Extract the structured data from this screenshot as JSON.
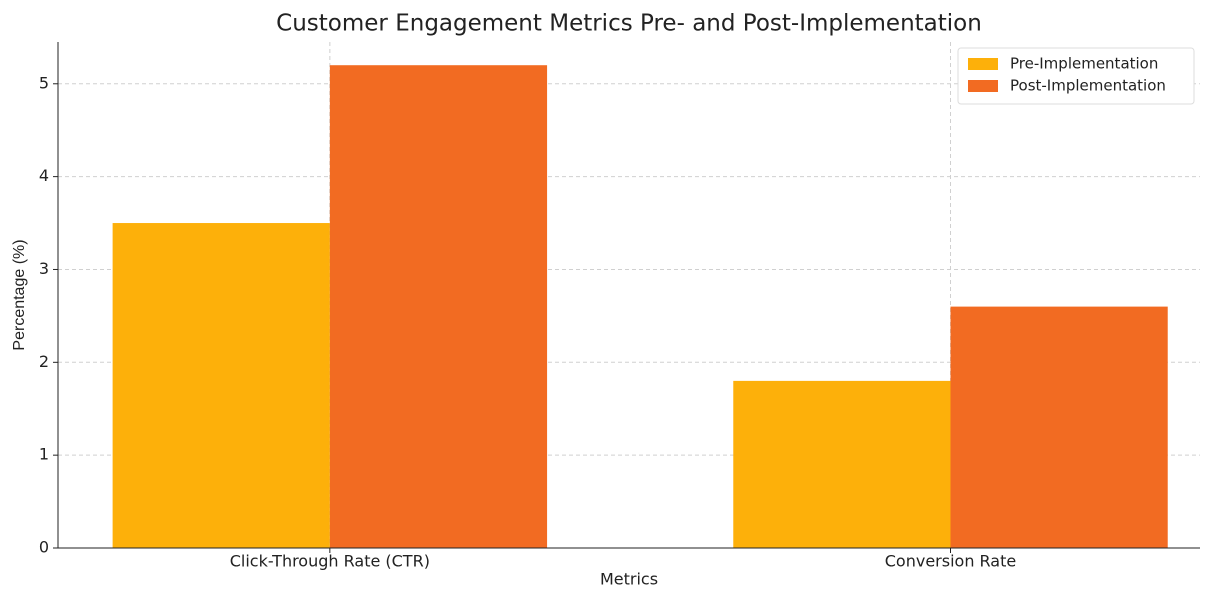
{
  "chart_data": {
    "type": "bar",
    "title": "Customer Engagement Metrics Pre- and Post-Implementation",
    "x_label": "Metrics",
    "y_label": "Percentage (%)",
    "categories": [
      "Click-Through Rate (CTR)",
      "Conversion Rate"
    ],
    "series": [
      {
        "name": "Pre-Implementation",
        "color": "#fdb00a",
        "values": [
          3.5,
          1.8
        ]
      },
      {
        "name": "Post-Implementation",
        "color": "#f26b22",
        "values": [
          5.2,
          2.6
        ]
      }
    ],
    "ylim": [
      0,
      5.45
    ],
    "yticks": [
      0,
      1,
      2,
      3,
      4,
      5
    ],
    "grid": true,
    "legend": "upper right"
  }
}
